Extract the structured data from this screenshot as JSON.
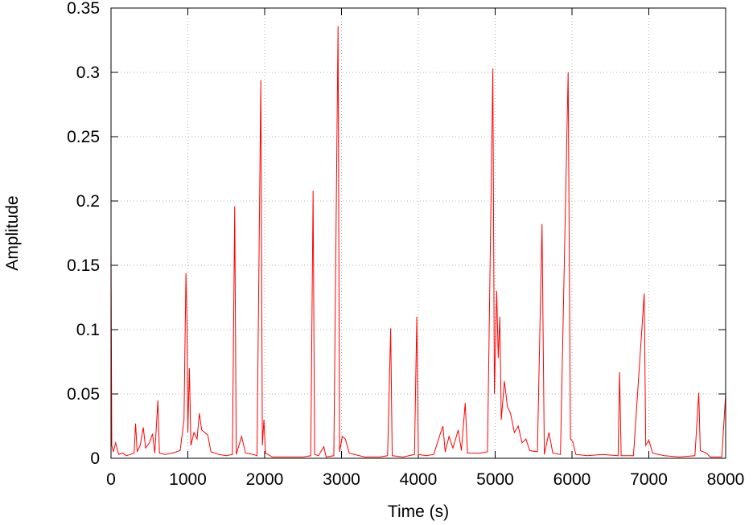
{
  "chart_data": {
    "type": "line",
    "xlabel": "Time (s)",
    "ylabel": "Amplitude",
    "xlim": [
      0,
      8000
    ],
    "ylim": [
      0,
      0.35
    ],
    "xticks": [
      0,
      1000,
      2000,
      3000,
      4000,
      5000,
      6000,
      7000,
      8000
    ],
    "yticks": [
      0,
      0.05,
      0.1,
      0.15,
      0.2,
      0.25,
      0.3,
      0.35
    ],
    "grid": true,
    "series": [
      {
        "color": "#ff0000",
        "x": [
          0,
          10,
          30,
          60,
          100,
          150,
          200,
          250,
          300,
          320,
          340,
          380,
          420,
          450,
          500,
          540,
          570,
          610,
          630,
          700,
          800,
          900,
          950,
          975,
          990,
          1000,
          1020,
          1040,
          1080,
          1120,
          1150,
          1180,
          1220,
          1260,
          1300,
          1400,
          1500,
          1580,
          1610,
          1630,
          1700,
          1750,
          1850,
          1900,
          1950,
          1970,
          1990,
          2010,
          2100,
          2300,
          2500,
          2600,
          2630,
          2650,
          2700,
          2770,
          2800,
          2900,
          2955,
          2975,
          3010,
          3050,
          3100,
          3300,
          3500,
          3600,
          3640,
          3660,
          3800,
          3950,
          3980,
          4000,
          4100,
          4200,
          4280,
          4320,
          4350,
          4400,
          4450,
          4520,
          4560,
          4610,
          4640,
          4800,
          4900,
          4970,
          4990,
          5020,
          5040,
          5060,
          5080,
          5120,
          5160,
          5200,
          5250,
          5300,
          5350,
          5400,
          5450,
          5550,
          5610,
          5640,
          5700,
          5750,
          5850,
          5950,
          5980,
          6010,
          6050,
          6200,
          6400,
          6600,
          6620,
          6640,
          6800,
          6940,
          6960,
          7000,
          7050,
          7200,
          7400,
          7600,
          7650,
          7670,
          7750,
          7800,
          7950,
          8000
        ],
        "values": [
          0.16,
          0.01,
          0.005,
          0.012,
          0.003,
          0.004,
          0.002,
          0.003,
          0.004,
          0.027,
          0.005,
          0.01,
          0.024,
          0.008,
          0.012,
          0.019,
          0.004,
          0.045,
          0.004,
          0.003,
          0.004,
          0.006,
          0.03,
          0.144,
          0.1,
          0.02,
          0.07,
          0.01,
          0.02,
          0.015,
          0.035,
          0.022,
          0.02,
          0.018,
          0.005,
          0.003,
          0.002,
          0.003,
          0.196,
          0.003,
          0.017,
          0.004,
          0.003,
          0.002,
          0.294,
          0.01,
          0.03,
          0.004,
          0.001,
          0.001,
          0.001,
          0.002,
          0.208,
          0.003,
          0.002,
          0.009,
          0.001,
          0.002,
          0.336,
          0.005,
          0.017,
          0.015,
          0.004,
          0.001,
          0.001,
          0.002,
          0.101,
          0.002,
          0.001,
          0.003,
          0.11,
          0.003,
          0.002,
          0.003,
          0.018,
          0.025,
          0.005,
          0.017,
          0.008,
          0.022,
          0.006,
          0.043,
          0.004,
          0.004,
          0.005,
          0.303,
          0.05,
          0.13,
          0.078,
          0.11,
          0.03,
          0.06,
          0.04,
          0.035,
          0.02,
          0.025,
          0.012,
          0.015,
          0.006,
          0.005,
          0.182,
          0.003,
          0.02,
          0.004,
          0.003,
          0.3,
          0.015,
          0.013,
          0.003,
          0.002,
          0.003,
          0.002,
          0.067,
          0.002,
          0.002,
          0.128,
          0.01,
          0.014,
          0.004,
          0.002,
          0.001,
          0.002,
          0.051,
          0.006,
          0.004,
          0.001,
          0.001,
          0.05
        ]
      }
    ]
  }
}
